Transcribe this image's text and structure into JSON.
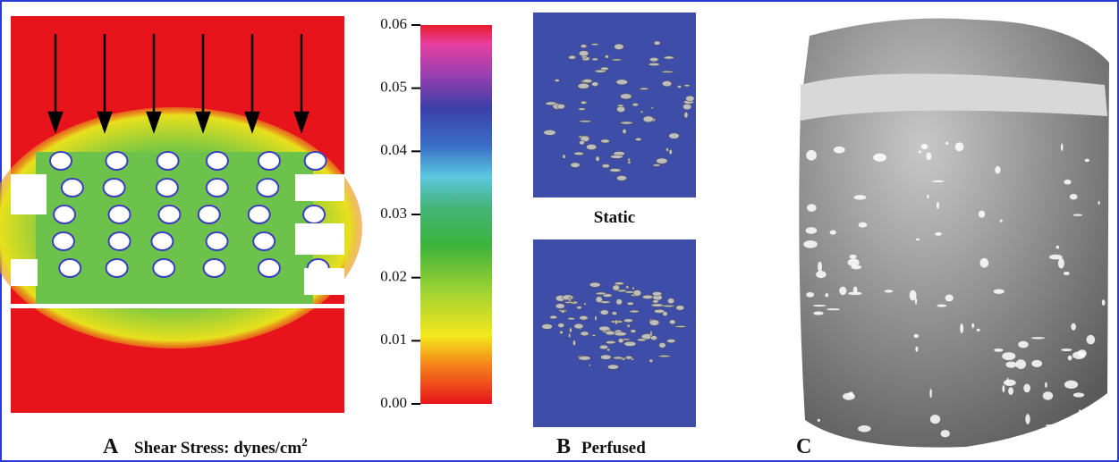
{
  "panel_a": {
    "letter": "A",
    "caption": "Shear Stress: dynes/cm",
    "caption_exponent": "2",
    "colorbar_ticks": [
      "0.00",
      "0.01",
      "0.02",
      "0.03",
      "0.04",
      "0.05",
      "0.06"
    ]
  },
  "panel_b": {
    "letter": "B",
    "top_label": "Static",
    "bottom_label": "Perfused"
  },
  "panel_c": {
    "letter": "C"
  }
}
